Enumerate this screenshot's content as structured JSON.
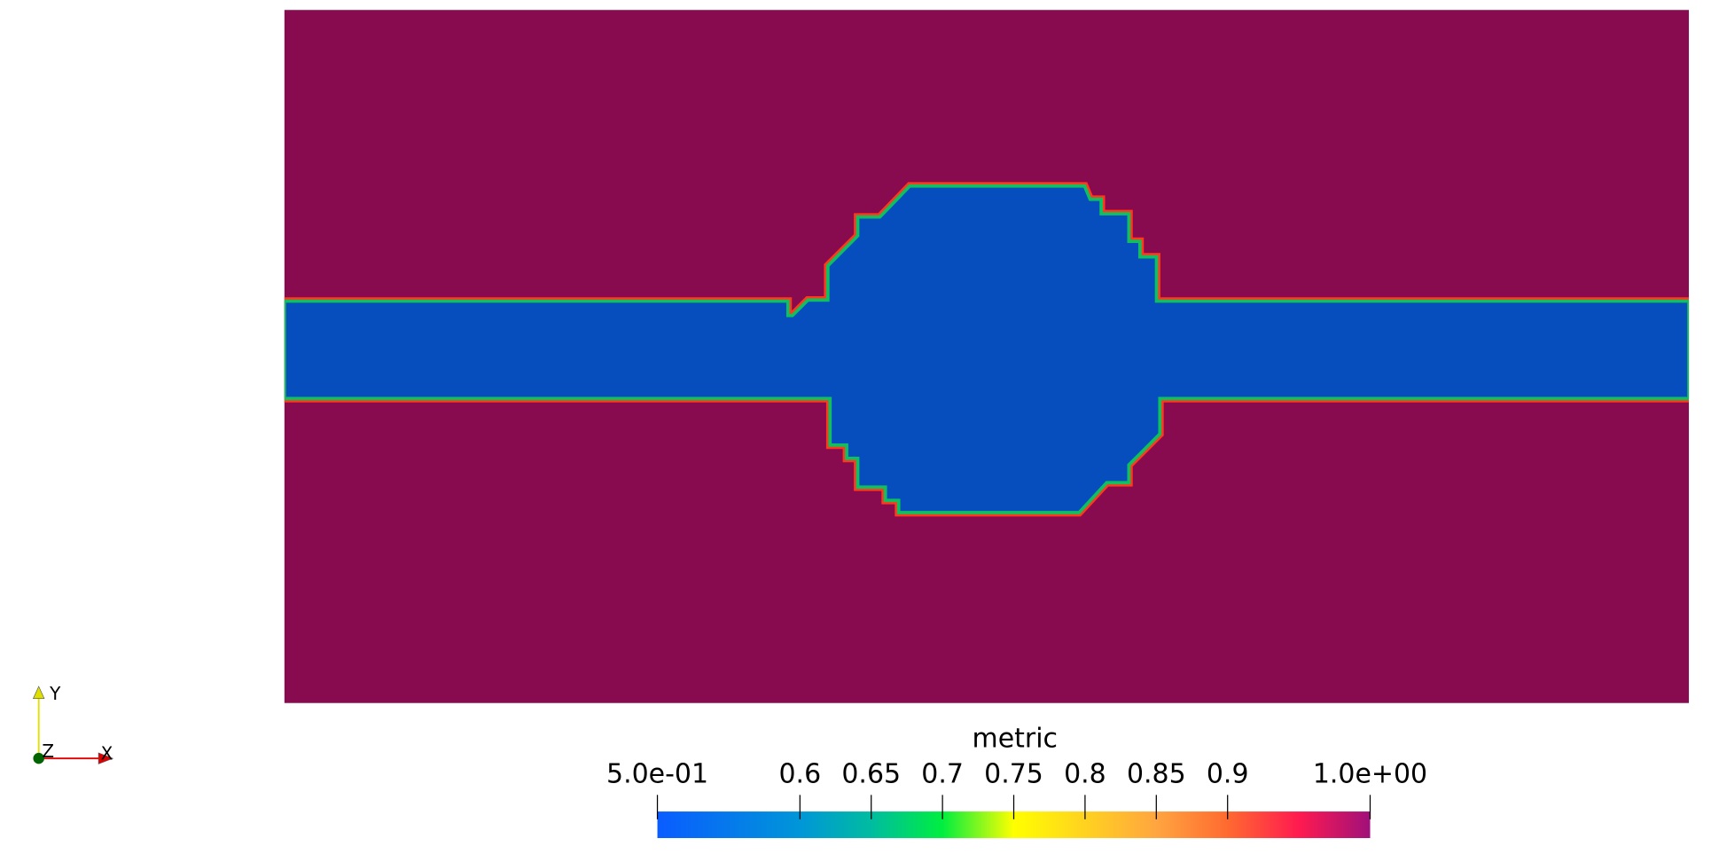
{
  "chart_data": {
    "type": "field",
    "title": "metric",
    "background_color": "#890b4f",
    "region_color": "#064dbd",
    "edge_colors": [
      "#ff3a1a",
      "#10c060"
    ],
    "lim": [
      0.5,
      1.0
    ],
    "ticks": [
      {
        "value": 0.5,
        "label": "5.0e-01"
      },
      0.6,
      0.65,
      0.7,
      0.75,
      0.8,
      0.85,
      0.9,
      {
        "value": 1.0,
        "label": "1.0e+00"
      }
    ],
    "colormap": [
      {
        "value": 0.5,
        "color": "#0a5cff"
      },
      {
        "value": 0.6,
        "color": "#0096d8"
      },
      {
        "value": 0.65,
        "color": "#00bca0"
      },
      {
        "value": 0.7,
        "color": "#00ee40"
      },
      {
        "value": 0.75,
        "color": "#ffff00"
      },
      {
        "value": 0.85,
        "color": "#ffa540"
      },
      {
        "value": 0.9,
        "color": "#ff6a30"
      },
      {
        "value": 0.95,
        "color": "#ff1a50"
      },
      {
        "value": 1.0,
        "color": "#a0107a"
      }
    ],
    "axes_labels": [
      "X",
      "Y",
      "Z"
    ]
  }
}
